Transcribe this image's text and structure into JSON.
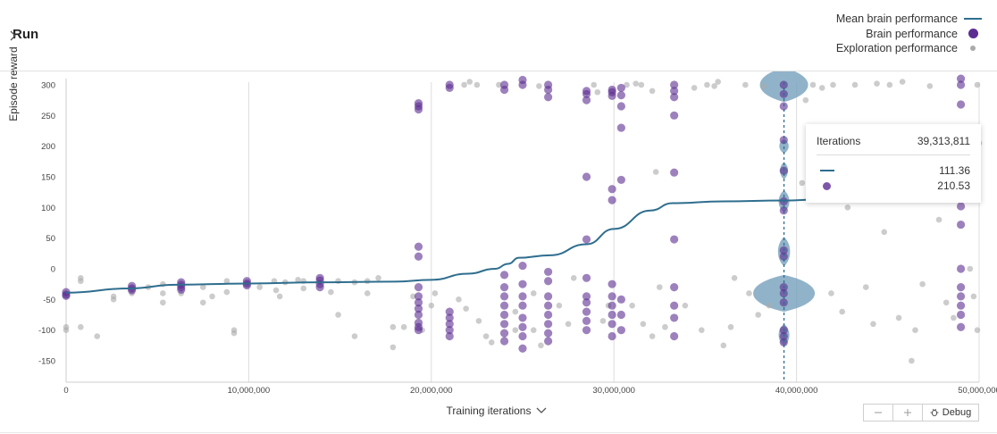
{
  "header": {
    "title": "Run"
  },
  "legend": {
    "items": [
      {
        "label": "Mean brain performance",
        "marker": "line"
      },
      {
        "label": "Brain performance",
        "marker": "large-dot"
      },
      {
        "label": "Exploration performance",
        "marker": "small-dot"
      }
    ]
  },
  "axes": {
    "y_title": "Episode reward",
    "x_title": "Training iterations"
  },
  "tooltip": {
    "header_label": "Iterations",
    "header_value": "39,313,811",
    "mean_value": "111.36",
    "brain_value": "210.53"
  },
  "controls": {
    "zoom_out_icon": "minus-icon",
    "zoom_in_icon": "plus-icon",
    "debug_label": "Debug",
    "debug_icon": "bug-icon"
  },
  "colors": {
    "mean_line": "#2f6e8e",
    "brain": "#5c2d91",
    "exploration": "#aaaaaa",
    "violin": "#7ea6c0"
  },
  "chart_data": {
    "type": "scatter",
    "xlim": [
      0,
      50000000
    ],
    "ylim": [
      -150,
      300
    ],
    "x_ticks": [
      0,
      10000000,
      20000000,
      30000000,
      40000000,
      50000000
    ],
    "x_tick_labels": [
      "0",
      "10,000,000",
      "20,000,000",
      "30,000,000",
      "40,000,000",
      "50,000,000"
    ],
    "y_ticks": [
      300,
      250,
      200,
      150,
      100,
      50,
      0,
      -50,
      -100,
      -150
    ],
    "y_tick_labels": [
      "300",
      "250",
      "200",
      "150",
      "100",
      "50",
      "0",
      "-50",
      "-100",
      "-150"
    ],
    "grid": "vertical",
    "legend_position": "top-right",
    "selected_x": 39313811,
    "series": [
      {
        "name": "Mean brain performance",
        "kind": "line",
        "points": [
          [
            0,
            -39
          ],
          [
            3500000,
            -32
          ],
          [
            6000000,
            -26
          ],
          [
            10000000,
            -24
          ],
          [
            14000000,
            -22
          ],
          [
            18000000,
            -21
          ],
          [
            20000000,
            -18
          ],
          [
            22000000,
            -8
          ],
          [
            23500000,
            0
          ],
          [
            24200000,
            8
          ],
          [
            24800000,
            18
          ],
          [
            26500000,
            22
          ],
          [
            28500000,
            40
          ],
          [
            30000000,
            65
          ],
          [
            32000000,
            95
          ],
          [
            33200000,
            107
          ],
          [
            36000000,
            110
          ],
          [
            39300000,
            111.4
          ],
          [
            43000000,
            116
          ],
          [
            47000000,
            121
          ],
          [
            50000000,
            123
          ]
        ]
      },
      {
        "name": "Brain performance",
        "kind": "points",
        "points": [
          [
            0,
            -38
          ],
          [
            0,
            -42
          ],
          [
            0,
            -44
          ],
          [
            3600000,
            -28
          ],
          [
            3600000,
            -32
          ],
          [
            3600000,
            -35
          ],
          [
            6300000,
            -22
          ],
          [
            6300000,
            -26
          ],
          [
            6300000,
            -30
          ],
          [
            6300000,
            -34
          ],
          [
            9900000,
            -20
          ],
          [
            9900000,
            -24
          ],
          [
            9900000,
            -27
          ],
          [
            13900000,
            -15
          ],
          [
            13900000,
            -19
          ],
          [
            13900000,
            -25
          ],
          [
            13900000,
            -30
          ],
          [
            19300000,
            260
          ],
          [
            19300000,
            265
          ],
          [
            19300000,
            270
          ],
          [
            19300000,
            36
          ],
          [
            19300000,
            20
          ],
          [
            19300000,
            -30
          ],
          [
            19300000,
            -45
          ],
          [
            19300000,
            -55
          ],
          [
            19300000,
            -65
          ],
          [
            19300000,
            -75
          ],
          [
            19300000,
            -88
          ],
          [
            19300000,
            -95
          ],
          [
            19300000,
            -100
          ],
          [
            21000000,
            295
          ],
          [
            21000000,
            300
          ],
          [
            21000000,
            -70
          ],
          [
            21000000,
            -80
          ],
          [
            21000000,
            -90
          ],
          [
            21000000,
            -100
          ],
          [
            21000000,
            -110
          ],
          [
            24000000,
            292
          ],
          [
            24000000,
            300
          ],
          [
            24000000,
            -10
          ],
          [
            24000000,
            -30
          ],
          [
            24000000,
            -45
          ],
          [
            24000000,
            -60
          ],
          [
            24000000,
            -75
          ],
          [
            24000000,
            -90
          ],
          [
            24000000,
            -105
          ],
          [
            24000000,
            -118
          ],
          [
            25000000,
            300
          ],
          [
            25000000,
            308
          ],
          [
            25000000,
            5
          ],
          [
            25000000,
            -25
          ],
          [
            25000000,
            -45
          ],
          [
            25000000,
            -60
          ],
          [
            25000000,
            -80
          ],
          [
            25000000,
            -95
          ],
          [
            25000000,
            -110
          ],
          [
            25000000,
            -130
          ],
          [
            26400000,
            280
          ],
          [
            26400000,
            292
          ],
          [
            26400000,
            300
          ],
          [
            26400000,
            -5
          ],
          [
            26400000,
            -20
          ],
          [
            26400000,
            -45
          ],
          [
            26400000,
            -60
          ],
          [
            26400000,
            -75
          ],
          [
            26400000,
            -90
          ],
          [
            26400000,
            -105
          ],
          [
            26400000,
            -118
          ],
          [
            28500000,
            275
          ],
          [
            28500000,
            285
          ],
          [
            28500000,
            290
          ],
          [
            28500000,
            150
          ],
          [
            28500000,
            48
          ],
          [
            28500000,
            -15
          ],
          [
            28500000,
            -45
          ],
          [
            28500000,
            -55
          ],
          [
            28500000,
            -70
          ],
          [
            28500000,
            -85
          ],
          [
            28500000,
            -100
          ],
          [
            29900000,
            282
          ],
          [
            29900000,
            288
          ],
          [
            29900000,
            292
          ],
          [
            29900000,
            130
          ],
          [
            29900000,
            112
          ],
          [
            29900000,
            -25
          ],
          [
            29900000,
            -45
          ],
          [
            29900000,
            -60
          ],
          [
            29900000,
            -75
          ],
          [
            29900000,
            -90
          ],
          [
            29900000,
            -110
          ],
          [
            30400000,
            230
          ],
          [
            30400000,
            265
          ],
          [
            30400000,
            283
          ],
          [
            30400000,
            295
          ],
          [
            30400000,
            145
          ],
          [
            30400000,
            -50
          ],
          [
            30400000,
            -75
          ],
          [
            30400000,
            -100
          ],
          [
            33300000,
            280
          ],
          [
            33300000,
            290
          ],
          [
            33300000,
            300
          ],
          [
            33300000,
            250
          ],
          [
            33300000,
            157
          ],
          [
            33300000,
            48
          ],
          [
            33300000,
            -30
          ],
          [
            33300000,
            -60
          ],
          [
            33300000,
            -80
          ],
          [
            33300000,
            -110
          ],
          [
            39300000,
            300
          ],
          [
            39300000,
            285
          ],
          [
            39300000,
            265
          ],
          [
            39300000,
            210
          ],
          [
            39300000,
            160
          ],
          [
            39300000,
            110
          ],
          [
            39300000,
            95
          ],
          [
            39300000,
            30
          ],
          [
            39300000,
            20
          ],
          [
            39300000,
            -30
          ],
          [
            39300000,
            -40
          ],
          [
            39300000,
            -55
          ],
          [
            39300000,
            -100
          ],
          [
            39300000,
            -110
          ],
          [
            39300000,
            -120
          ],
          [
            49000000,
            310
          ],
          [
            49000000,
            300
          ],
          [
            49000000,
            268
          ],
          [
            49000000,
            102
          ],
          [
            49000000,
            72
          ],
          [
            49000000,
            0
          ],
          [
            49000000,
            -30
          ],
          [
            49000000,
            -45
          ],
          [
            49000000,
            -60
          ],
          [
            49000000,
            -75
          ],
          [
            49000000,
            -95
          ]
        ]
      },
      {
        "name": "Exploration performance",
        "kind": "points",
        "points": [
          [
            0,
            -100
          ],
          [
            0,
            -95
          ],
          [
            800000,
            -95
          ],
          [
            800000,
            -20
          ],
          [
            800000,
            -15
          ],
          [
            1700000,
            -110
          ],
          [
            2600000,
            -45
          ],
          [
            2600000,
            -50
          ],
          [
            3600000,
            -40
          ],
          [
            4500000,
            -30
          ],
          [
            5300000,
            -25
          ],
          [
            5300000,
            -40
          ],
          [
            5300000,
            -55
          ],
          [
            6300000,
            -40
          ],
          [
            7500000,
            -30
          ],
          [
            7500000,
            -55
          ],
          [
            8000000,
            -45
          ],
          [
            8800000,
            -20
          ],
          [
            8800000,
            -38
          ],
          [
            9200000,
            -100
          ],
          [
            9200000,
            -105
          ],
          [
            10600000,
            -30
          ],
          [
            11400000,
            -20
          ],
          [
            12000000,
            -22
          ],
          [
            12700000,
            -18
          ],
          [
            11500000,
            -35
          ],
          [
            11700000,
            -45
          ],
          [
            13000000,
            -20
          ],
          [
            13000000,
            -32
          ],
          [
            14500000,
            -38
          ],
          [
            14900000,
            -20
          ],
          [
            14900000,
            -75
          ],
          [
            15800000,
            -22
          ],
          [
            15800000,
            -110
          ],
          [
            16500000,
            -20
          ],
          [
            16500000,
            -40
          ],
          [
            17100000,
            -15
          ],
          [
            17900000,
            -95
          ],
          [
            17900000,
            -128
          ],
          [
            18500000,
            -95
          ],
          [
            19000000,
            -45
          ],
          [
            19500000,
            -100
          ],
          [
            20000000,
            -60
          ],
          [
            20200000,
            -40
          ],
          [
            21800000,
            300
          ],
          [
            22100000,
            305
          ],
          [
            22500000,
            300
          ],
          [
            21500000,
            -50
          ],
          [
            21900000,
            -65
          ],
          [
            22600000,
            -85
          ],
          [
            23000000,
            -110
          ],
          [
            23300000,
            -120
          ],
          [
            23700000,
            300
          ],
          [
            24600000,
            -70
          ],
          [
            24600000,
            -100
          ],
          [
            25600000,
            -40
          ],
          [
            25600000,
            -100
          ],
          [
            25900000,
            298
          ],
          [
            26000000,
            -125
          ],
          [
            27000000,
            -60
          ],
          [
            27500000,
            -90
          ],
          [
            27800000,
            -15
          ],
          [
            28900000,
            300
          ],
          [
            29100000,
            288
          ],
          [
            29400000,
            -85
          ],
          [
            29700000,
            -60
          ],
          [
            30700000,
            300
          ],
          [
            31200000,
            302
          ],
          [
            31500000,
            300
          ],
          [
            31000000,
            -60
          ],
          [
            31600000,
            -90
          ],
          [
            32100000,
            290
          ],
          [
            32800000,
            -95
          ],
          [
            32300000,
            158
          ],
          [
            32100000,
            -110
          ],
          [
            32500000,
            -30
          ],
          [
            33900000,
            -60
          ],
          [
            34400000,
            295
          ],
          [
            34800000,
            -100
          ],
          [
            35100000,
            300
          ],
          [
            35500000,
            298
          ],
          [
            35700000,
            305
          ],
          [
            36000000,
            -125
          ],
          [
            36400000,
            -95
          ],
          [
            36600000,
            -15
          ],
          [
            37200000,
            300
          ],
          [
            37400000,
            -40
          ],
          [
            37900000,
            -75
          ],
          [
            38200000,
            298
          ],
          [
            38500000,
            -60
          ],
          [
            40300000,
            140
          ],
          [
            40500000,
            275
          ],
          [
            40900000,
            300
          ],
          [
            41400000,
            295
          ],
          [
            41900000,
            -40
          ],
          [
            42000000,
            300
          ],
          [
            42500000,
            -70
          ],
          [
            42800000,
            100
          ],
          [
            43200000,
            300
          ],
          [
            43800000,
            -30
          ],
          [
            44200000,
            -90
          ],
          [
            44400000,
            302
          ],
          [
            44800000,
            60
          ],
          [
            45100000,
            300
          ],
          [
            45600000,
            -80
          ],
          [
            45800000,
            305
          ],
          [
            46300000,
            -150
          ],
          [
            46500000,
            -100
          ],
          [
            46900000,
            -25
          ],
          [
            47300000,
            298
          ],
          [
            47800000,
            80
          ],
          [
            48200000,
            -55
          ],
          [
            48600000,
            -80
          ],
          [
            49500000,
            0
          ],
          [
            49700000,
            -45
          ],
          [
            49900000,
            -100
          ],
          [
            49900000,
            300
          ],
          [
            50000000,
            205
          ]
        ]
      }
    ],
    "violins": [
      {
        "center": 300,
        "half_height": 28,
        "half_width": 36
      },
      {
        "center": 200,
        "half_height": 12,
        "half_width": 7
      },
      {
        "center": 160,
        "half_height": 14,
        "half_width": 6
      },
      {
        "center": 110,
        "half_height": 18,
        "half_width": 8
      },
      {
        "center": 28,
        "half_height": 24,
        "half_width": 9
      },
      {
        "center": -40,
        "half_height": 30,
        "half_width": 46
      },
      {
        "center": -108,
        "half_height": 18,
        "half_width": 8
      }
    ]
  }
}
